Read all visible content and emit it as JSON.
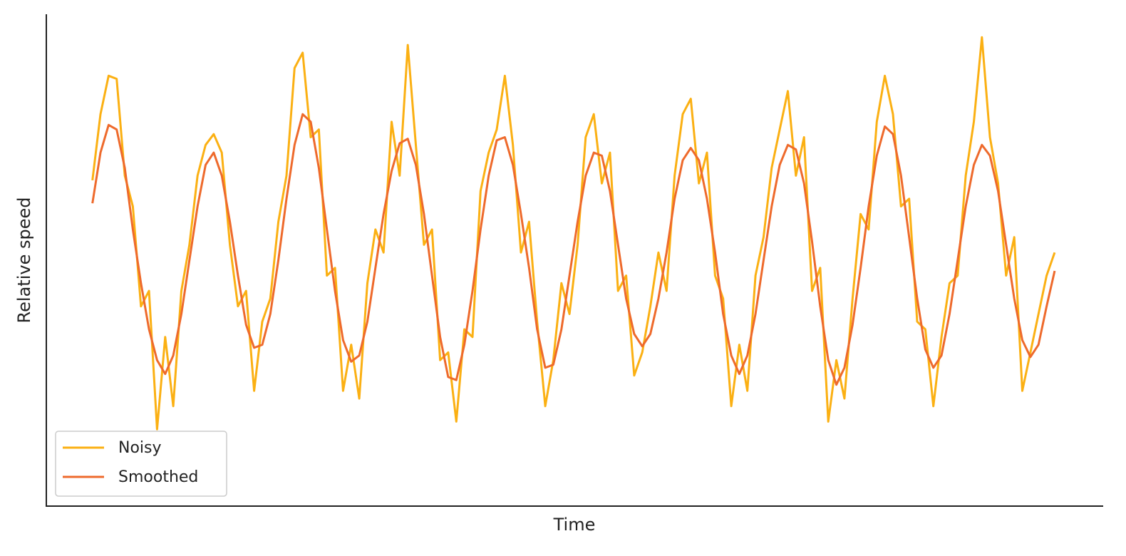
{
  "chart_data": {
    "type": "line",
    "xlabel": "Time",
    "ylabel": "Relative speed",
    "x": [
      0,
      1,
      2,
      3,
      4,
      5,
      6,
      7,
      8,
      9,
      10,
      11,
      12,
      13,
      14,
      15,
      16,
      17,
      18,
      19,
      20,
      21,
      22,
      23,
      24,
      25,
      26,
      27,
      28,
      29,
      30,
      31,
      32,
      33,
      34,
      35,
      36,
      37,
      38,
      39,
      40,
      41,
      42,
      43,
      44,
      45,
      46,
      47,
      48,
      49,
      50,
      51,
      52,
      53,
      54,
      55,
      56,
      57,
      58,
      59,
      60,
      61,
      62,
      63,
      64,
      65,
      66,
      67,
      68,
      69,
      70,
      71,
      72,
      73,
      74,
      75,
      76,
      77,
      78,
      79,
      80,
      81,
      82,
      83,
      84,
      85,
      86,
      87,
      88,
      89,
      90,
      91,
      92,
      93,
      94,
      95,
      96,
      97,
      98,
      99,
      100,
      101,
      102,
      103,
      104,
      105,
      106,
      107,
      108,
      109,
      110,
      111,
      112,
      113,
      114,
      115,
      116,
      117,
      118,
      119
    ],
    "xlim": [
      -5.7,
      125
    ],
    "ylim": [
      -1.6,
      1.6
    ],
    "legend": "lower left",
    "grid": false,
    "series": [
      {
        "name": "Noisy",
        "color": "#fbb013",
        "values": [
          0.52,
          0.95,
          1.2,
          1.18,
          0.55,
          0.35,
          -0.3,
          -0.2,
          -1.1,
          -0.5,
          -0.95,
          -0.2,
          0.1,
          0.55,
          0.75,
          0.82,
          0.7,
          0.1,
          -0.3,
          -0.2,
          -0.85,
          -0.4,
          -0.25,
          0.25,
          0.55,
          1.25,
          1.35,
          0.8,
          0.85,
          -0.1,
          -0.05,
          -0.85,
          -0.55,
          -0.9,
          -0.15,
          0.2,
          0.05,
          0.9,
          0.55,
          1.4,
          0.75,
          0.1,
          0.2,
          -0.65,
          -0.6,
          -1.05,
          -0.45,
          -0.5,
          0.45,
          0.7,
          0.85,
          1.2,
          0.75,
          0.05,
          0.25,
          -0.4,
          -0.95,
          -0.65,
          -0.15,
          -0.35,
          0.1,
          0.8,
          0.95,
          0.5,
          0.7,
          -0.2,
          -0.1,
          -0.75,
          -0.6,
          -0.3,
          0.05,
          -0.2,
          0.55,
          0.95,
          1.05,
          0.5,
          0.7,
          -0.1,
          -0.25,
          -0.95,
          -0.55,
          -0.85,
          -0.1,
          0.15,
          0.6,
          0.85,
          1.1,
          0.55,
          0.8,
          -0.2,
          -0.05,
          -1.05,
          -0.65,
          -0.9,
          -0.25,
          0.3,
          0.2,
          0.9,
          1.2,
          0.95,
          0.35,
          0.4,
          -0.4,
          -0.45,
          -0.95,
          -0.5,
          -0.15,
          -0.1,
          0.55,
          0.9,
          1.45,
          0.8,
          0.5,
          -0.1,
          0.15,
          -0.85,
          -0.6,
          -0.35,
          -0.1,
          0.05
        ]
      },
      {
        "name": "Smoothed",
        "color": "#ee6a2c",
        "values": [
          0.37,
          0.7,
          0.88,
          0.85,
          0.6,
          0.2,
          -0.15,
          -0.45,
          -0.65,
          -0.74,
          -0.62,
          -0.35,
          0.0,
          0.35,
          0.62,
          0.7,
          0.55,
          0.25,
          -0.1,
          -0.42,
          -0.57,
          -0.55,
          -0.35,
          0.0,
          0.4,
          0.75,
          0.95,
          0.9,
          0.6,
          0.2,
          -0.2,
          -0.52,
          -0.66,
          -0.62,
          -0.4,
          -0.05,
          0.3,
          0.58,
          0.76,
          0.79,
          0.62,
          0.3,
          -0.1,
          -0.5,
          -0.76,
          -0.78,
          -0.55,
          -0.2,
          0.2,
          0.55,
          0.78,
          0.8,
          0.62,
          0.3,
          -0.05,
          -0.45,
          -0.7,
          -0.68,
          -0.45,
          -0.1,
          0.25,
          0.55,
          0.7,
          0.68,
          0.45,
          0.1,
          -0.25,
          -0.48,
          -0.56,
          -0.48,
          -0.25,
          0.05,
          0.4,
          0.65,
          0.73,
          0.65,
          0.4,
          0.05,
          -0.35,
          -0.62,
          -0.74,
          -0.62,
          -0.35,
          0.0,
          0.35,
          0.62,
          0.75,
          0.72,
          0.5,
          0.12,
          -0.3,
          -0.65,
          -0.81,
          -0.7,
          -0.42,
          -0.05,
          0.35,
          0.68,
          0.87,
          0.82,
          0.55,
          0.15,
          -0.25,
          -0.58,
          -0.7,
          -0.62,
          -0.35,
          0.0,
          0.35,
          0.62,
          0.75,
          0.68,
          0.45,
          0.1,
          -0.25,
          -0.52,
          -0.63,
          -0.55,
          -0.3,
          -0.07
        ]
      }
    ]
  }
}
